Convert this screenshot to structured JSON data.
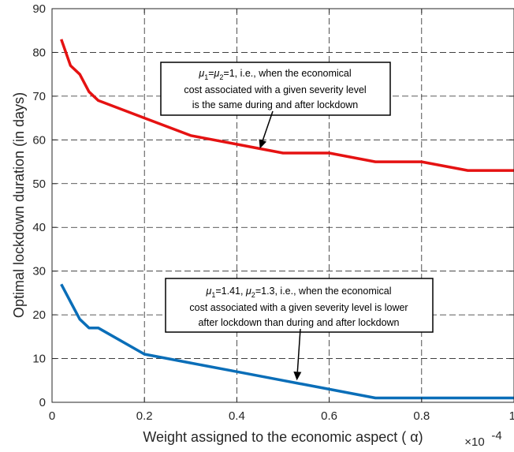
{
  "chart_data": {
    "type": "line",
    "xlabel": "Weight assigned to the economic aspect ( α)",
    "ylabel": "Optimal lockdown duration (in days)",
    "x_exponent_label": "×10",
    "x_exponent_power": "-4",
    "xlim": [
      0,
      1
    ],
    "ylim": [
      0,
      90
    ],
    "x_ticks": [
      "0",
      "0.2",
      "0.4",
      "0.6",
      "0.8",
      "1"
    ],
    "y_ticks": [
      "0",
      "10",
      "20",
      "30",
      "40",
      "50",
      "60",
      "70",
      "80",
      "90"
    ],
    "grid": true,
    "series": [
      {
        "color": "#e51212",
        "x": [
          0.02,
          0.04,
          0.06,
          0.08,
          0.1,
          0.2,
          0.3,
          0.4,
          0.5,
          0.6,
          0.7,
          0.8,
          0.9,
          1.0
        ],
        "y": [
          83,
          77,
          75,
          71,
          69,
          65,
          61,
          59,
          57,
          57,
          55,
          55,
          53,
          53
        ]
      },
      {
        "color": "#0a6eb8",
        "x": [
          0.02,
          0.04,
          0.06,
          0.08,
          0.1,
          0.2,
          0.3,
          0.4,
          0.5,
          0.6,
          0.7,
          0.8,
          0.9,
          1.0
        ],
        "y": [
          27,
          23,
          19,
          17,
          17,
          11,
          9,
          7,
          5,
          3,
          1,
          1,
          1,
          1
        ]
      }
    ],
    "annotations": [
      {
        "lines": [
          "μ1=μ2=1, i.e., when the economical",
          "cost associated with a given severity level",
          "is the same during and after lockdown"
        ],
        "arrow_to": [
          0.45,
          58
        ]
      },
      {
        "lines": [
          "μ1=1.41, μ2=1.3, i.e., when the economical",
          "cost associated with a given severity level is lower",
          "after lockdown than during and after lockdown"
        ],
        "arrow_to": [
          0.53,
          5
        ]
      }
    ]
  }
}
